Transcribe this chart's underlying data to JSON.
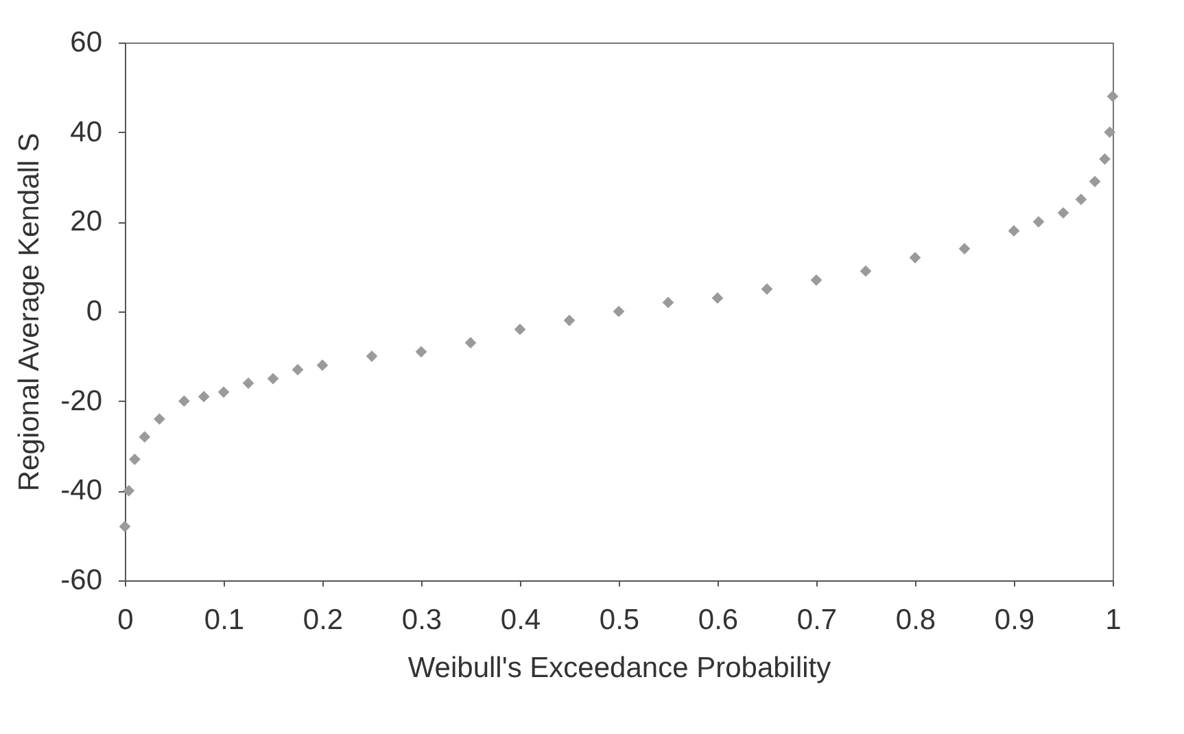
{
  "chart_data": {
    "type": "scatter",
    "xlabel": "Weibull's Exceedance Probability",
    "ylabel": "Regional Average Kendall S",
    "x": [
      0,
      0.004,
      0.01,
      0.02,
      0.035,
      0.06,
      0.08,
      0.1,
      0.125,
      0.15,
      0.175,
      0.2,
      0.25,
      0.3,
      0.35,
      0.4,
      0.45,
      0.5,
      0.55,
      0.6,
      0.65,
      0.7,
      0.75,
      0.8,
      0.85,
      0.9,
      0.925,
      0.95,
      0.968,
      0.982,
      0.992,
      0.997,
      1
    ],
    "series": [
      {
        "color": "#9a9a9a",
        "values": [
          -48,
          -40,
          -33,
          -28,
          -24,
          -20,
          -19,
          -18,
          -16,
          -15,
          -13,
          -12,
          -10,
          -9,
          -7,
          -4,
          -2,
          0,
          2,
          3,
          5,
          7,
          9,
          12,
          14,
          18,
          20,
          22,
          25,
          29,
          34,
          40,
          48
        ]
      }
    ],
    "xlim": [
      0,
      1
    ],
    "xticks": [
      0,
      0.1,
      0.2,
      0.3,
      0.4,
      0.5,
      0.6,
      0.7,
      0.8,
      0.9,
      1
    ],
    "ylim": [
      -60,
      60
    ],
    "yticks": [
      -60,
      -40,
      -20,
      0,
      20,
      40,
      60
    ],
    "grid": false,
    "marker": "diamond"
  }
}
